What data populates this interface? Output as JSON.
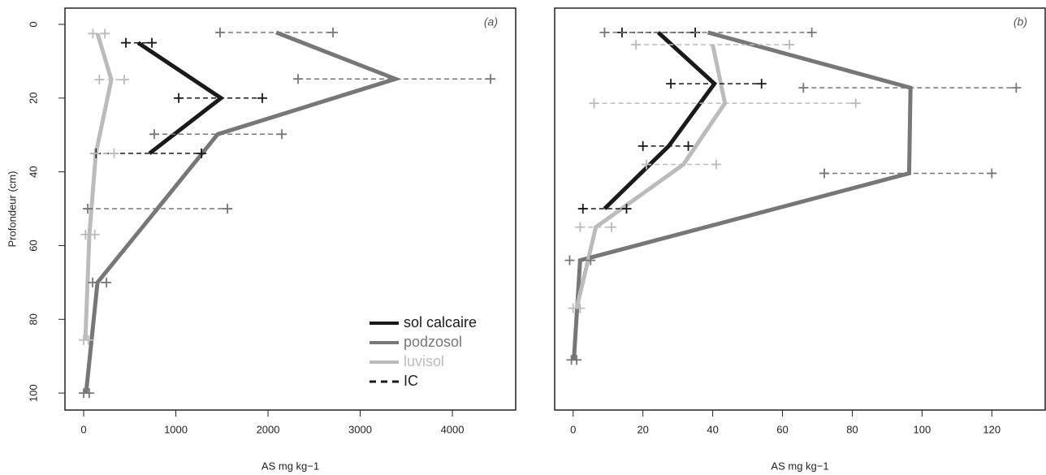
{
  "chart_data": [
    {
      "type": "line",
      "panel_label": "(a)",
      "x_label": "AS mg kg−1",
      "y_label": "Profondeur (cm)",
      "xlim": [
        -203,
        4687
      ],
      "xticks": [
        0,
        1000,
        2000,
        3000,
        4000
      ],
      "ylim": [
        104.6,
        -4.4
      ],
      "yticks": [
        0,
        20,
        40,
        60,
        80,
        100
      ],
      "legend": "lower right",
      "ci_label": "IC",
      "ci_color": "#1a1a1a",
      "series": [
        {
          "name": "sol calcaire",
          "color": "#1a1a1a",
          "x": [
            590,
            1490,
            714
          ],
          "y": [
            5,
            20,
            35
          ],
          "ci_low": [
            458,
            1031,
            132
          ],
          "ci_high": [
            740,
            1938,
            1278
          ]
        },
        {
          "name": "podzosol",
          "color": "#777777",
          "x": [
            2088,
            3383,
            1454,
            800,
            150,
            26
          ],
          "y": [
            2.2,
            14.8,
            29.8,
            50,
            70,
            100
          ],
          "ci_low": [
            1480,
            2326,
            766,
            44,
            97,
            0
          ],
          "ci_high": [
            2705,
            4414,
            2150,
            1560,
            247,
            60
          ]
        },
        {
          "name": "luvisol",
          "color": "#bbbbbb",
          "x": [
            150,
            300,
            132,
            62,
            18
          ],
          "y": [
            2.5,
            15,
            35,
            57,
            85.6
          ],
          "ci_low": [
            100,
            170,
            120,
            20,
            0
          ],
          "ci_high": [
            230,
            440,
            330,
            120,
            50
          ]
        }
      ]
    },
    {
      "type": "line",
      "panel_label": "(b)",
      "x_label": "AS mg kg−1",
      "xlim": [
        -5.3,
        135.3
      ],
      "xticks": [
        0,
        20,
        40,
        60,
        80,
        100,
        120
      ],
      "ylim": [
        104.6,
        -4.4
      ],
      "series": [
        {
          "name": "sol calcaire",
          "color": "#1a1a1a",
          "x": [
            24.4,
            40.5,
            27.4,
            9
          ],
          "y": [
            2.2,
            16.1,
            33,
            50
          ],
          "ci_low": [
            14,
            28,
            20,
            2.8
          ],
          "ci_high": [
            35,
            54,
            33,
            15.3
          ]
        },
        {
          "name": "podzosol",
          "color": "#777777",
          "x": [
            38.6,
            96.7,
            96.3,
            2,
            0.2
          ],
          "y": [
            2.2,
            17.2,
            40.4,
            64,
            91
          ],
          "ci_low": [
            9,
            66,
            72,
            -1,
            -0.5
          ],
          "ci_high": [
            68.4,
            127,
            120,
            5,
            1
          ]
        },
        {
          "name": "luvisol",
          "color": "#bbbbbb",
          "x": [
            40,
            43.5,
            31.6,
            6.5,
            1
          ],
          "y": [
            5.5,
            21.4,
            38,
            55,
            77
          ],
          "ci_low": [
            18,
            6,
            21,
            2,
            0
          ],
          "ci_high": [
            62,
            81,
            41,
            11,
            2
          ]
        }
      ]
    }
  ]
}
